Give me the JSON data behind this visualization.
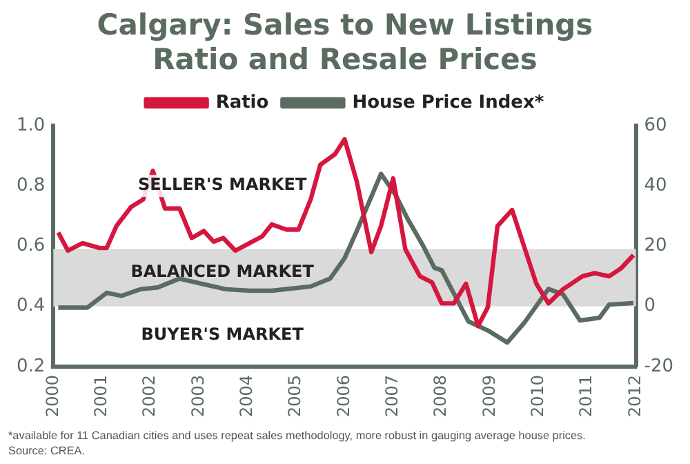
{
  "chart_data": {
    "type": "line",
    "title": "Calgary: Sales to New Listings Ratio and Resale Prices",
    "series": [
      {
        "name": "Ratio",
        "color": "#d5173f",
        "axis": "y",
        "x": [
          2000.1,
          2000.3,
          2000.6,
          2000.95,
          2001.1,
          2001.3,
          2001.6,
          2001.85,
          2002.05,
          2002.3,
          2002.6,
          2002.85,
          2003.1,
          2003.3,
          2003.5,
          2003.75,
          2004.1,
          2004.3,
          2004.5,
          2004.8,
          2005.05,
          2005.3,
          2005.5,
          2005.8,
          2006.0,
          2006.25,
          2006.55,
          2006.75,
          2007.0,
          2007.25,
          2007.55,
          2007.8,
          2008.0,
          2008.25,
          2008.5,
          2008.75,
          2008.95,
          2009.15,
          2009.45,
          2009.95,
          2010.2,
          2010.5,
          2010.9,
          2011.15,
          2011.45,
          2011.7,
          2011.95
        ],
        "values": [
          0.645,
          0.585,
          0.61,
          0.594,
          0.594,
          0.667,
          0.73,
          0.755,
          0.85,
          0.725,
          0.725,
          0.627,
          0.65,
          0.615,
          0.627,
          0.585,
          0.615,
          0.632,
          0.672,
          0.655,
          0.655,
          0.755,
          0.87,
          0.905,
          0.955,
          0.815,
          0.58,
          0.667,
          0.825,
          0.59,
          0.5,
          0.48,
          0.41,
          0.41,
          0.475,
          0.335,
          0.397,
          0.667,
          0.72,
          0.475,
          0.41,
          0.457,
          0.5,
          0.51,
          0.5,
          0.527,
          0.57
        ]
      },
      {
        "name": "House Price Index*",
        "color": "#5a6b60",
        "axis": "y2",
        "x": [
          2000.1,
          2000.7,
          2001.1,
          2001.4,
          2001.8,
          2002.15,
          2002.6,
          2003.05,
          2003.55,
          2004.05,
          2004.5,
          2005.3,
          2005.7,
          2006.0,
          2006.25,
          2006.75,
          2007.05,
          2007.3,
          2007.6,
          2007.85,
          2008.0,
          2008.55,
          2008.95,
          2009.35,
          2009.7,
          2010.2,
          2010.5,
          2010.85,
          2011.25,
          2011.45,
          2011.95
        ],
        "values": [
          -0.4,
          -0.4,
          4.5,
          3.5,
          5.7,
          6.3,
          9.2,
          7.5,
          5.7,
          5.2,
          5.2,
          6.6,
          9.2,
          16,
          25,
          44,
          37,
          29,
          20.6,
          12.8,
          12,
          -5,
          -8,
          -12,
          -5.5,
          5.8,
          4,
          -4.7,
          -3.8,
          0.6,
          1.1
        ]
      }
    ],
    "xlim": [
      2000,
      2012
    ],
    "xticks": [
      2000,
      2001,
      2002,
      2003,
      2004,
      2005,
      2006,
      2007,
      2008,
      2009,
      2010,
      2011,
      2012
    ],
    "ylim": [
      0.2,
      1.0
    ],
    "yticks": [
      {
        "value": 0.2,
        "label": "0.2"
      },
      {
        "value": 0.4,
        "label": "0.4"
      },
      {
        "value": 0.6,
        "label": "0.6"
      },
      {
        "value": 0.8,
        "label": "0.8"
      },
      {
        "value": 1.0,
        "label": "1.0"
      }
    ],
    "y2lim": [
      -20,
      60
    ],
    "y2ticks": [
      -20,
      0,
      20,
      40,
      60
    ],
    "bands": [
      {
        "axis": "y",
        "from": 0.4,
        "to": 0.59,
        "label": "BALANCED MARKET",
        "color": "#dadada"
      }
    ],
    "annotations": [
      "SELLER'S MARKET",
      "BUYER'S MARKET",
      "*available for 11 Canadian cities and uses repeat sales methodology, more robust in gauging average house prices.",
      "Source: CREA."
    ],
    "grid": false,
    "legend": "top",
    "marker": "none",
    "line_style": "solid"
  }
}
